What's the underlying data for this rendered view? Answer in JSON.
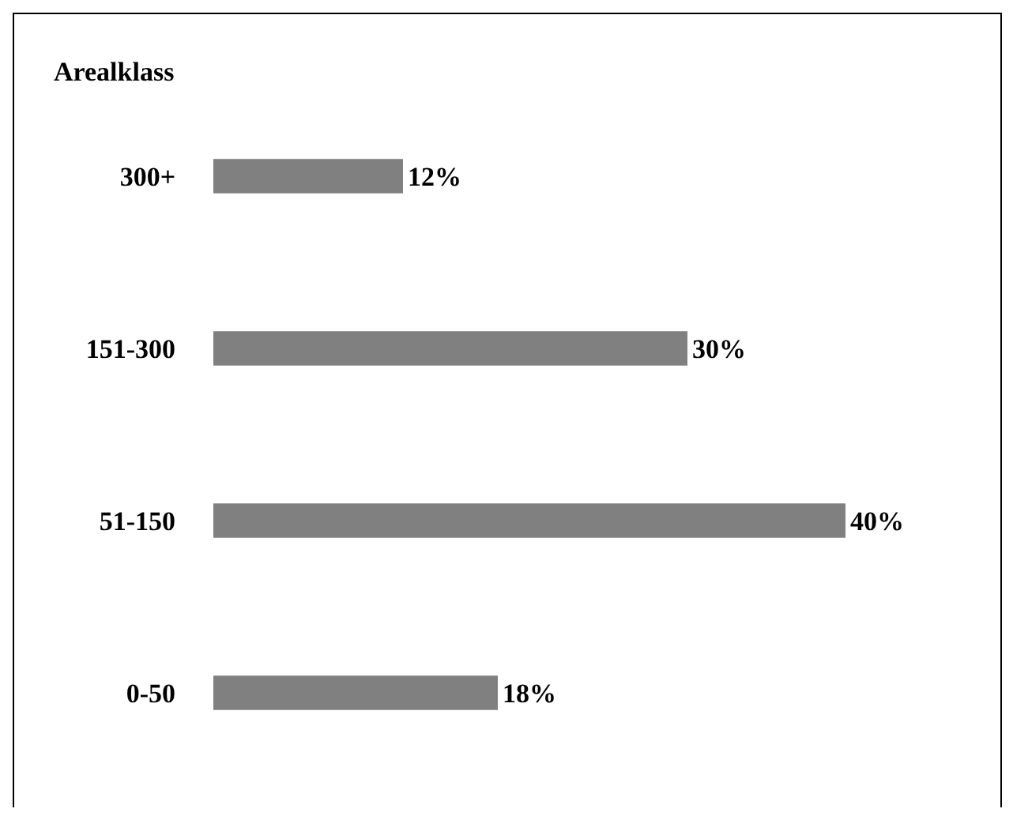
{
  "chart_data": {
    "type": "bar",
    "orientation": "horizontal",
    "ylabel": "Arealklass",
    "categories": [
      "300+",
      "151-300",
      "51-150",
      "0-50"
    ],
    "values": [
      12,
      30,
      40,
      18
    ],
    "color": "#808080",
    "value_labels": [
      "12%",
      "30%",
      "40%",
      "18%"
    ],
    "grid": false,
    "legend": false
  }
}
